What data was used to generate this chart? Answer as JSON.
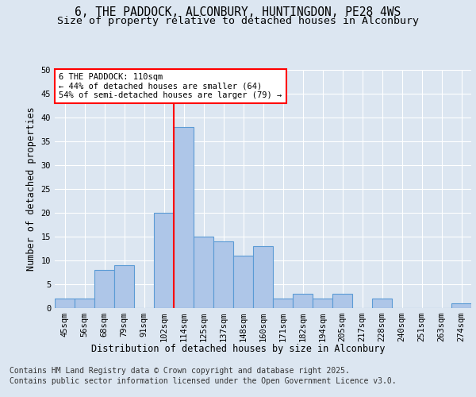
{
  "title_line1": "6, THE PADDOCK, ALCONBURY, HUNTINGDON, PE28 4WS",
  "title_line2": "Size of property relative to detached houses in Alconbury",
  "xlabel": "Distribution of detached houses by size in Alconbury",
  "ylabel": "Number of detached properties",
  "bar_labels": [
    "45sqm",
    "56sqm",
    "68sqm",
    "79sqm",
    "91sqm",
    "102sqm",
    "114sqm",
    "125sqm",
    "137sqm",
    "148sqm",
    "160sqm",
    "171sqm",
    "182sqm",
    "194sqm",
    "205sqm",
    "217sqm",
    "228sqm",
    "240sqm",
    "251sqm",
    "263sqm",
    "274sqm"
  ],
  "bar_values": [
    2,
    2,
    8,
    9,
    0,
    20,
    38,
    15,
    14,
    11,
    13,
    2,
    3,
    2,
    3,
    0,
    2,
    0,
    0,
    0,
    1
  ],
  "bar_color": "#aec6e8",
  "bar_edgecolor": "#5b9bd5",
  "vline_x": 6,
  "vline_color": "red",
  "annotation_text": "6 THE PADDOCK: 110sqm\n← 44% of detached houses are smaller (64)\n54% of semi-detached houses are larger (79) →",
  "annotation_box_edgecolor": "red",
  "background_color": "#dce6f1",
  "plot_background": "#dce6f1",
  "ylim": [
    0,
    50
  ],
  "yticks": [
    0,
    5,
    10,
    15,
    20,
    25,
    30,
    35,
    40,
    45,
    50
  ],
  "footer_line1": "Contains HM Land Registry data © Crown copyright and database right 2025.",
  "footer_line2": "Contains public sector information licensed under the Open Government Licence v3.0.",
  "grid_color": "#ffffff",
  "title_fontsize": 10.5,
  "subtitle_fontsize": 9.5,
  "axis_label_fontsize": 8.5,
  "tick_fontsize": 7.5,
  "annotation_fontsize": 7.5,
  "footer_fontsize": 7
}
